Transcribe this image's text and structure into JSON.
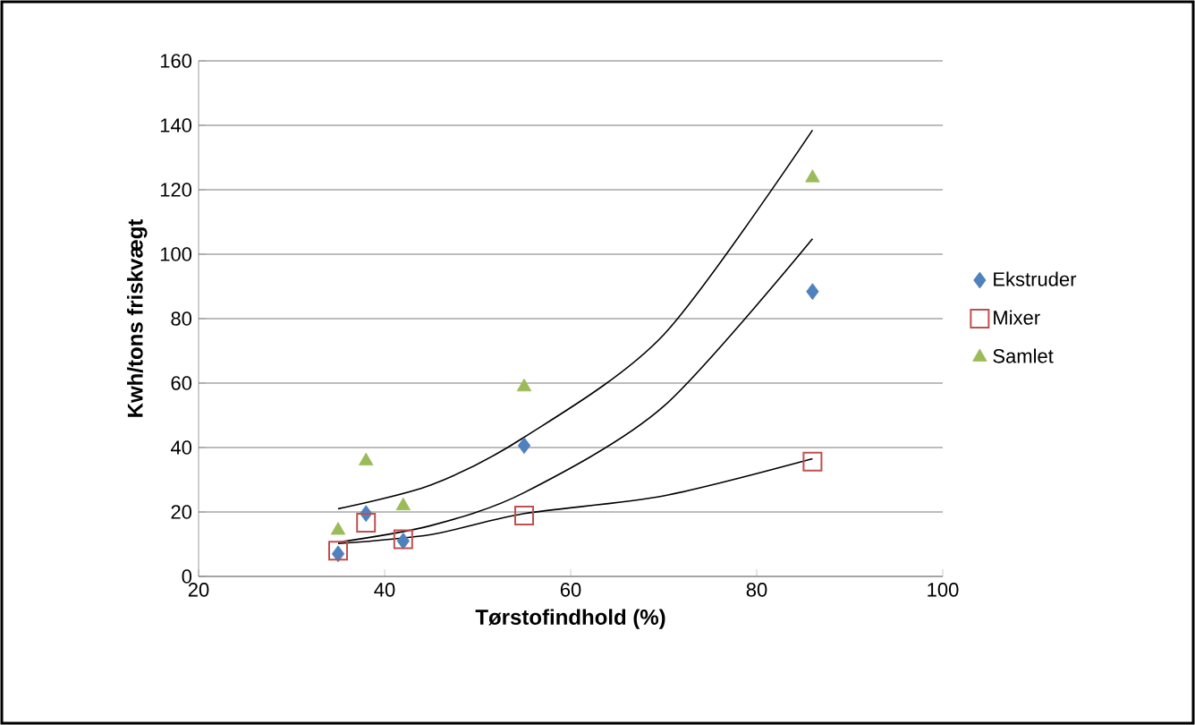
{
  "chart_data": {
    "type": "scatter",
    "xlabel": "Tørstofindhold (%)",
    "ylabel": "Kwh/tons friskvægt",
    "x": [
      35,
      38,
      42,
      55,
      86
    ],
    "series": [
      {
        "name": "Ekstruder",
        "color": "#4f81bd",
        "marker": "diamond",
        "values": [
          7,
          19.5,
          11,
          40.6,
          88.4
        ]
      },
      {
        "name": "Mixer",
        "color": "#c0504d",
        "marker": "square",
        "values": [
          8,
          16.7,
          11.5,
          18.9,
          35.6
        ]
      },
      {
        "name": "Samlet",
        "color": "#9bbb59",
        "marker": "triangle",
        "values": [
          14.3,
          35.8,
          21.9,
          58.8,
          123.7
        ]
      },
      {
        "type": "line",
        "color": "#000000",
        "marker": "none",
        "x": [
          35,
          45,
          55,
          70,
          86
        ],
        "values": [
          21,
          28.4,
          43.2,
          75,
          138.5
        ]
      },
      {
        "type": "line",
        "color": "#000000",
        "marker": "none",
        "x": [
          35,
          45,
          55,
          70,
          86
        ],
        "values": [
          10.6,
          15.8,
          26,
          52.8,
          104.8
        ]
      },
      {
        "type": "line",
        "color": "#000000",
        "marker": "none",
        "x": [
          35,
          45,
          55,
          70,
          86
        ],
        "values": [
          10.2,
          13,
          19.5,
          25,
          36.5
        ]
      }
    ],
    "xlim": [
      20,
      100
    ],
    "xticks": [
      20,
      40,
      60,
      80,
      100
    ],
    "ylim": [
      0,
      160
    ],
    "yticks": [
      0,
      20,
      40,
      60,
      80,
      100,
      120,
      140,
      160
    ],
    "grid": "y",
    "legend": "right"
  }
}
